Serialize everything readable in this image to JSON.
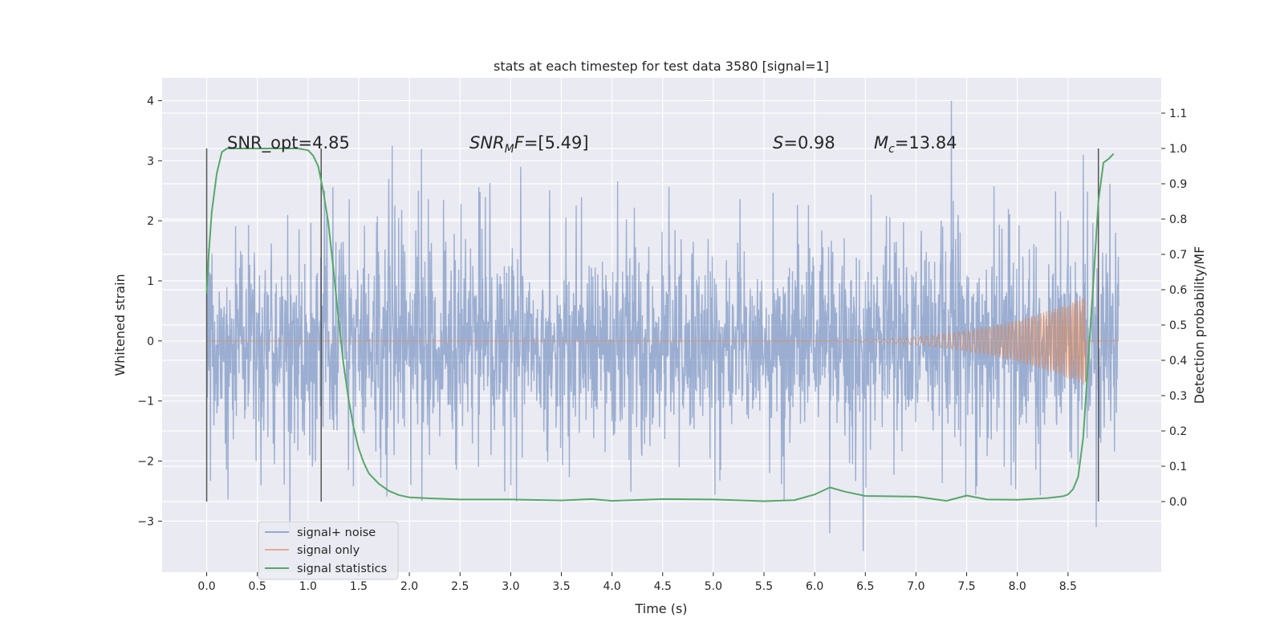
{
  "chart_data": {
    "type": "line",
    "title": "stats at each timestep for test data 3580 [signal=1]",
    "xlabel": "Time (s)",
    "ylabel": "Whitened strain",
    "ylabel_right": "Detection probability/MF",
    "xlim": [
      -0.44,
      9.42
    ],
    "ylim": [
      -3.85,
      4.38
    ],
    "ylim_right": [
      -0.2,
      1.2
    ],
    "x_ticks": [
      "0.0",
      "0.5",
      "1.0",
      "1.5",
      "2.0",
      "2.5",
      "3.0",
      "3.5",
      "4.0",
      "4.5",
      "5.0",
      "5.5",
      "6.0",
      "6.5",
      "7.0",
      "7.5",
      "8.0",
      "8.5"
    ],
    "y_ticks": [
      "−3",
      "−2",
      "−1",
      "0",
      "1",
      "2",
      "3",
      "4"
    ],
    "y_ticks_right": [
      "0.0",
      "0.1",
      "0.2",
      "0.3",
      "0.4",
      "0.5",
      "0.6",
      "0.7",
      "0.8",
      "0.9",
      "1.0",
      "1.1"
    ],
    "grid": true,
    "legend_position": "lower-left",
    "colors": {
      "background": "#eaeaf2",
      "grid": "#ffffff",
      "signal_noise": "#4c72b0",
      "signal_only": "#dd8452",
      "statistics": "#55a868",
      "markers": "#555555"
    },
    "annotations": {
      "snr_opt": "SNR_opt=4.85",
      "snr_mf": "=[5.49]",
      "s": "=0.98",
      "mc": "=13.84"
    },
    "vertical_markers_x": [
      0.0,
      1.13,
      8.8
    ],
    "series": [
      {
        "name": "signal+ noise",
        "description_range": [
          0.0,
          9.0
        ],
        "typical_envelope": [
          -1.4,
          1.4
        ],
        "peaks": [
          {
            "x": 0.82,
            "y": -3.2
          },
          {
            "x": 1.83,
            "y": 3.25
          },
          {
            "x": 2.12,
            "y": 3.2
          },
          {
            "x": 3.1,
            "y": 2.9
          },
          {
            "x": 6.15,
            "y": -3.2
          },
          {
            "x": 6.48,
            "y": -3.5
          },
          {
            "x": 7.35,
            "y": 4.0
          },
          {
            "x": 8.65,
            "y": 3.1
          },
          {
            "x": 8.78,
            "y": -3.1
          }
        ]
      },
      {
        "name": "signal only",
        "chirp_start": 5.5,
        "chirp_end": 8.68,
        "peak_amplitude": 0.75
      },
      {
        "name": "signal statistics",
        "x": [
          0.0,
          0.02,
          0.05,
          0.1,
          0.15,
          0.2,
          0.3,
          0.5,
          0.7,
          0.9,
          1.0,
          1.05,
          1.1,
          1.15,
          1.2,
          1.25,
          1.3,
          1.35,
          1.4,
          1.45,
          1.5,
          1.55,
          1.6,
          1.7,
          1.8,
          1.9,
          2.0,
          2.2,
          2.5,
          3.0,
          3.5,
          3.8,
          4.0,
          4.5,
          5.0,
          5.5,
          5.8,
          6.0,
          6.15,
          6.3,
          6.5,
          7.0,
          7.3,
          7.5,
          7.7,
          8.0,
          8.3,
          8.45,
          8.5,
          8.55,
          8.6,
          8.65,
          8.7,
          8.75,
          8.8,
          8.85,
          8.9,
          8.95
        ],
        "values": [
          0.59,
          0.7,
          0.82,
          0.93,
          0.99,
          1.0,
          1.0,
          1.0,
          1.0,
          1.0,
          0.995,
          0.98,
          0.95,
          0.88,
          0.79,
          0.66,
          0.52,
          0.39,
          0.29,
          0.21,
          0.15,
          0.11,
          0.08,
          0.05,
          0.03,
          0.018,
          0.012,
          0.009,
          0.006,
          0.006,
          0.003,
          0.007,
          0.002,
          0.007,
          0.006,
          0.001,
          0.004,
          0.02,
          0.04,
          0.028,
          0.016,
          0.014,
          0.002,
          0.017,
          0.006,
          0.005,
          0.01,
          0.015,
          0.02,
          0.035,
          0.07,
          0.18,
          0.4,
          0.62,
          0.85,
          0.96,
          0.97,
          0.985
        ]
      }
    ]
  }
}
